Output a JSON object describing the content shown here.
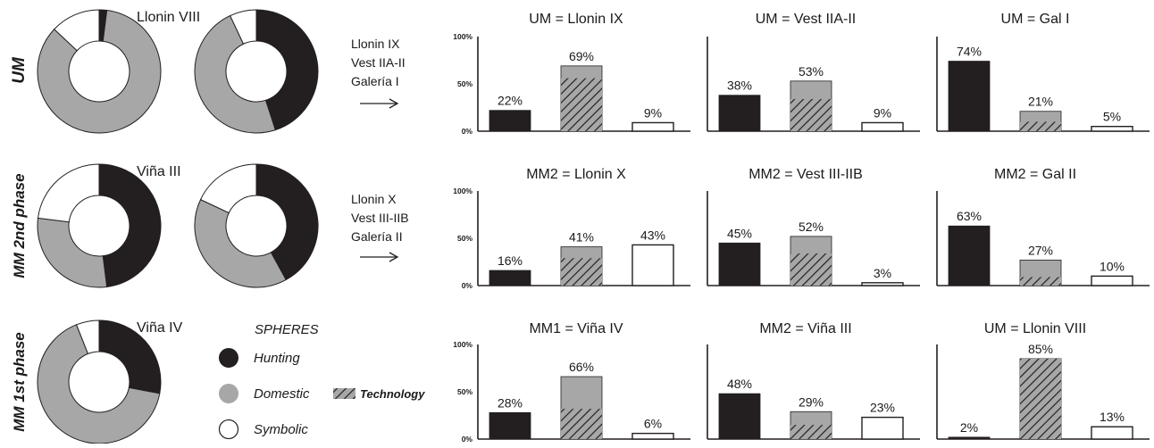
{
  "colors": {
    "hunting": "#231f20",
    "domestic": "#a7a7a7",
    "symbolic": "#ffffff",
    "outline": "#231f20",
    "hatch": "#231f20"
  },
  "row_labels": [
    "UM",
    "MM 2nd phase",
    "MM 1st phase"
  ],
  "donut_labels": [
    "Llonin VIII",
    "Viña III",
    "Viña IV"
  ],
  "arrow_labels": [
    [
      "Llonin IX",
      "Vest IIA-II",
      "Galería I"
    ],
    [
      "Llonin X",
      "Vest III-IIB",
      "Galería II"
    ]
  ],
  "legend": {
    "title": "SPHERES",
    "items": [
      {
        "key": "hunting",
        "label": "Hunting"
      },
      {
        "key": "domestic",
        "label": "Domestic"
      },
      {
        "key": "symbolic",
        "label": "Symbolic"
      }
    ],
    "technology_label": "Technology"
  },
  "chart_data": [
    {
      "type": "pie",
      "style": "donut",
      "slices": [
        {
          "key": "hunting",
          "value": 2
        },
        {
          "key": "domestic",
          "value": 85
        },
        {
          "key": "symbolic",
          "value": 13
        }
      ]
    },
    {
      "type": "pie",
      "style": "donut",
      "slices": [
        {
          "key": "hunting",
          "value": 45
        },
        {
          "key": "domestic",
          "value": 48
        },
        {
          "key": "symbolic",
          "value": 7
        }
      ]
    },
    {
      "type": "pie",
      "style": "donut",
      "slices": [
        {
          "key": "hunting",
          "value": 48
        },
        {
          "key": "domestic",
          "value": 29
        },
        {
          "key": "symbolic",
          "value": 23
        }
      ]
    },
    {
      "type": "pie",
      "style": "donut",
      "slices": [
        {
          "key": "hunting",
          "value": 42
        },
        {
          "key": "domestic",
          "value": 40
        },
        {
          "key": "symbolic",
          "value": 18
        }
      ]
    },
    {
      "type": "pie",
      "style": "donut",
      "slices": [
        {
          "key": "hunting",
          "value": 28
        },
        {
          "key": "domestic",
          "value": 66
        },
        {
          "key": "symbolic",
          "value": 6
        }
      ]
    },
    {
      "type": "bar",
      "title": "UM = Llonin IX",
      "categories": [
        "Hunting",
        "Domestic",
        "Symbolic"
      ],
      "values": [
        22,
        69,
        9
      ],
      "technology": [
        0,
        56,
        0
      ],
      "value_labels": [
        "22%",
        "69%",
        "9%"
      ],
      "ylim": [
        0,
        100
      ],
      "yticks": [
        "0%",
        "50%",
        "100%"
      ]
    },
    {
      "type": "bar",
      "title": "UM = Vest IIA-II",
      "categories": [
        "Hunting",
        "Domestic",
        "Symbolic"
      ],
      "values": [
        38,
        53,
        9
      ],
      "technology": [
        0,
        34,
        0
      ],
      "value_labels": [
        "38%",
        "53%",
        "9%"
      ],
      "ylim": [
        0,
        100
      ],
      "yticks": []
    },
    {
      "type": "bar",
      "title": "UM = Gal I",
      "categories": [
        "Hunting",
        "Domestic",
        "Symbolic"
      ],
      "values": [
        74,
        21,
        5
      ],
      "technology": [
        0,
        10,
        0
      ],
      "value_labels": [
        "74%",
        "21%",
        "5%"
      ],
      "ylim": [
        0,
        100
      ],
      "yticks": []
    },
    {
      "type": "bar",
      "title": "MM2 = Llonin X",
      "categories": [
        "Hunting",
        "Domestic",
        "Symbolic"
      ],
      "values": [
        16,
        41,
        43
      ],
      "technology": [
        0,
        29,
        0
      ],
      "value_labels": [
        "16%",
        "41%",
        "43%"
      ],
      "ylim": [
        0,
        100
      ],
      "yticks": [
        "0%",
        "50%",
        "100%"
      ]
    },
    {
      "type": "bar",
      "title": "MM2 = Vest III-IIB",
      "categories": [
        "Hunting",
        "Domestic",
        "Symbolic"
      ],
      "values": [
        45,
        52,
        3
      ],
      "technology": [
        0,
        34,
        0
      ],
      "value_labels": [
        "45%",
        "52%",
        "3%"
      ],
      "ylim": [
        0,
        100
      ],
      "yticks": []
    },
    {
      "type": "bar",
      "title": "MM2 = Gal II",
      "categories": [
        "Hunting",
        "Domestic",
        "Symbolic"
      ],
      "values": [
        63,
        27,
        10
      ],
      "technology": [
        0,
        9,
        0
      ],
      "value_labels": [
        "63%",
        "27%",
        "10%"
      ],
      "ylim": [
        0,
        100
      ],
      "yticks": []
    },
    {
      "type": "bar",
      "title": "MM1 = Viña IV",
      "categories": [
        "Hunting",
        "Domestic",
        "Symbolic"
      ],
      "values": [
        28,
        66,
        6
      ],
      "technology": [
        0,
        32,
        0
      ],
      "value_labels": [
        "28%",
        "66%",
        "6%"
      ],
      "ylim": [
        0,
        100
      ],
      "yticks": [
        "0%",
        "50%",
        "100%"
      ]
    },
    {
      "type": "bar",
      "title": "MM2 = Viña III",
      "categories": [
        "Hunting",
        "Domestic",
        "Symbolic"
      ],
      "values": [
        48,
        29,
        23
      ],
      "technology": [
        0,
        15,
        0
      ],
      "value_labels": [
        "48%",
        "29%",
        "23%"
      ],
      "ylim": [
        0,
        100
      ],
      "yticks": []
    },
    {
      "type": "bar",
      "title": "UM = Llonin VIII",
      "categories": [
        "Hunting",
        "Domestic",
        "Symbolic"
      ],
      "values": [
        2,
        85,
        13
      ],
      "technology": [
        0,
        85,
        0
      ],
      "value_labels": [
        "2%",
        "85%",
        "13%"
      ],
      "ylim": [
        0,
        100
      ],
      "yticks": []
    }
  ]
}
